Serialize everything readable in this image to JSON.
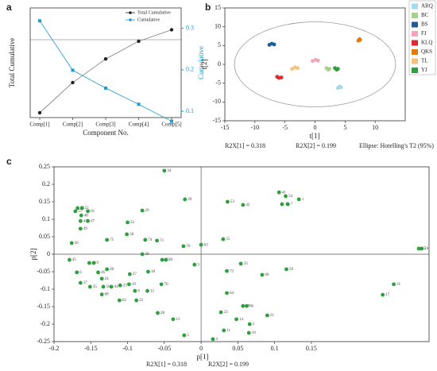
{
  "chart_data": [
    {
      "type": "line",
      "panel_label": "a",
      "categories": [
        "Comp[1]",
        "Comp[2]",
        "Comp[3]",
        "Comp[4]",
        "Comp[5]"
      ],
      "xlabel": "Component No.",
      "ylabel": "Total Cumulative",
      "y2label": "Cumulative",
      "ylim": [
        0.286,
        1.01
      ],
      "y2lim": [
        0.085,
        0.349
      ],
      "y2ticks": [
        0.1,
        0.2,
        0.3
      ],
      "hline": 0.8,
      "legend": "upper right",
      "series": [
        {
          "name": "Total Cumulative",
          "color": "#222222",
          "values": [
            0.318,
            0.517,
            0.673,
            0.79,
            0.866
          ]
        },
        {
          "name": "Cumulative",
          "color": "#1e9bd0",
          "axis": "y2",
          "values": [
            0.318,
            0.199,
            0.156,
            0.117,
            0.076
          ]
        }
      ]
    },
    {
      "type": "scatter",
      "panel_label": "b",
      "xlabel": "t[1]",
      "ylabel": "t[2]",
      "xlim": [
        -15,
        15
      ],
      "xticks": [
        -15,
        -10,
        -5,
        0,
        5,
        10
      ],
      "ylim": [
        -15,
        15
      ],
      "yticks": [
        -15,
        -10,
        -5,
        0,
        5,
        10,
        15
      ],
      "ellipse": {
        "rx": 13.4,
        "ry": 11.3
      },
      "annotations": [
        "R2X[1] = 0.318",
        "R2X[2] = 0.199",
        "Ellipse: Hotelling's T2 (95%)"
      ],
      "legend": "right",
      "series": [
        {
          "name": "ARQ",
          "color": "#a6d8ee",
          "x": [
            3.8,
            4.1,
            4.3
          ],
          "values": [
            -6.3,
            -5.9,
            -6.1
          ]
        },
        {
          "name": "BC",
          "color": "#a8d08d",
          "x": [
            1.9,
            2.2,
            2.4
          ],
          "values": [
            -1.0,
            -1.4,
            -1.2
          ]
        },
        {
          "name": "BS",
          "color": "#1f5c99",
          "x": [
            -7.6,
            -7.2,
            -6.8
          ],
          "values": [
            5.2,
            5.5,
            5.3
          ]
        },
        {
          "name": "FJ",
          "color": "#f4a6b8",
          "x": [
            -0.4,
            0.1,
            0.5
          ],
          "values": [
            0.9,
            1.2,
            1.0
          ]
        },
        {
          "name": "KLQ",
          "color": "#e0282f",
          "x": [
            -6.3,
            -6.0,
            -5.6
          ],
          "values": [
            -3.3,
            -3.6,
            -3.5
          ]
        },
        {
          "name": "QKS",
          "color": "#e07b10",
          "x": [
            7.2,
            7.4,
            7.5
          ],
          "values": [
            6.3,
            6.7,
            6.5
          ]
        },
        {
          "name": "TL",
          "color": "#f7c27b",
          "x": [
            -3.8,
            -3.3,
            -2.9
          ],
          "values": [
            -1.2,
            -0.8,
            -1.0
          ]
        },
        {
          "name": "YJ",
          "color": "#2e9e3e",
          "x": [
            3.3,
            3.6,
            3.8
          ],
          "values": [
            -1.0,
            -1.4,
            -1.2
          ]
        }
      ]
    },
    {
      "type": "scatter",
      "panel_label": "c",
      "xlabel": "p[1]",
      "ylabel": "p[2]",
      "xlim": [
        -0.2,
        0.31
      ],
      "xticks": [
        -0.2,
        -0.15,
        -0.1,
        -0.05,
        0,
        0.05,
        0.1,
        0.15
      ],
      "ylim": [
        -0.25,
        0.25
      ],
      "yticks": [
        -0.25,
        -0.2,
        -0.15,
        -0.1,
        -0.05,
        0,
        0.05,
        0.1,
        0.15,
        0.2,
        0.25
      ],
      "zero_lines": true,
      "color": "#2e9e3e",
      "annotations": [
        "R2X[1] = 0.318",
        "R2X[2] = 0.199"
      ],
      "points": {
        "labels": [
          "34",
          "39",
          "53",
          "42",
          "41",
          "54",
          "38",
          "7",
          "1",
          "51",
          "52",
          "57",
          "61",
          "29",
          "48",
          "43",
          "47",
          "49",
          "32",
          "26",
          "75",
          "58",
          "74",
          "71",
          "76",
          "63",
          "55",
          "30",
          "65",
          "40",
          "3",
          "45",
          "46",
          "9",
          "33",
          "72",
          "50",
          "60",
          "6",
          "20",
          "36",
          "27",
          "18",
          "24",
          "37",
          "35",
          "56",
          "44",
          "25",
          "19",
          "8",
          "70",
          "12",
          "64",
          "67",
          "66",
          "31",
          "17",
          "15",
          "16",
          "21",
          "2",
          "14",
          "23",
          "10",
          "11",
          "4",
          "5",
          "13",
          "28",
          "62",
          "22",
          "68"
        ],
        "x": [
          -0.05,
          -0.022,
          0.036,
          0.057,
          0.106,
          0.115,
          0.11,
          0.118,
          0.133,
          -0.168,
          -0.162,
          -0.171,
          -0.154,
          -0.08,
          -0.163,
          -0.164,
          -0.154,
          -0.164,
          -0.1,
          -0.176,
          -0.128,
          -0.101,
          -0.076,
          -0.06,
          -0.024,
          0.0,
          0.03,
          -0.08,
          -0.053,
          -0.048,
          -0.009,
          -0.179,
          -0.152,
          -0.146,
          0.054,
          0.035,
          0.116,
          0.083,
          -0.169,
          -0.128,
          -0.14,
          -0.097,
          -0.072,
          -0.135,
          -0.164,
          -0.151,
          -0.133,
          -0.122,
          -0.11,
          -0.098,
          -0.09,
          -0.054,
          -0.073,
          0.035,
          0.057,
          0.062,
          0.262,
          0.247,
          0.296,
          0.3,
          0.09,
          0.066,
          0.048,
          0.027,
          0.065,
          0.031,
          0.016,
          -0.023,
          -0.038,
          -0.059,
          -0.111,
          -0.088,
          -0.135
        ],
        "y": [
          0.239,
          0.157,
          0.15,
          0.141,
          0.177,
          0.166,
          0.143,
          0.143,
          0.157,
          0.132,
          0.132,
          0.123,
          0.123,
          0.125,
          0.111,
          0.095,
          0.095,
          0.073,
          0.091,
          0.032,
          0.041,
          0.057,
          0.041,
          0.039,
          0.023,
          0.027,
          0.043,
          0.0,
          -0.016,
          -0.016,
          -0.03,
          -0.016,
          -0.025,
          -0.025,
          -0.027,
          -0.048,
          -0.043,
          -0.059,
          -0.052,
          -0.043,
          -0.052,
          -0.057,
          -0.05,
          -0.07,
          -0.082,
          -0.093,
          -0.093,
          -0.093,
          -0.089,
          -0.086,
          -0.105,
          -0.086,
          -0.105,
          -0.111,
          -0.148,
          -0.148,
          -0.086,
          -0.116,
          0.016,
          0.016,
          -0.175,
          -0.2,
          -0.186,
          -0.166,
          -0.225,
          -0.218,
          -0.243,
          -0.232,
          -0.186,
          -0.168,
          -0.132,
          -0.132,
          -0.115
        ]
      }
    }
  ]
}
